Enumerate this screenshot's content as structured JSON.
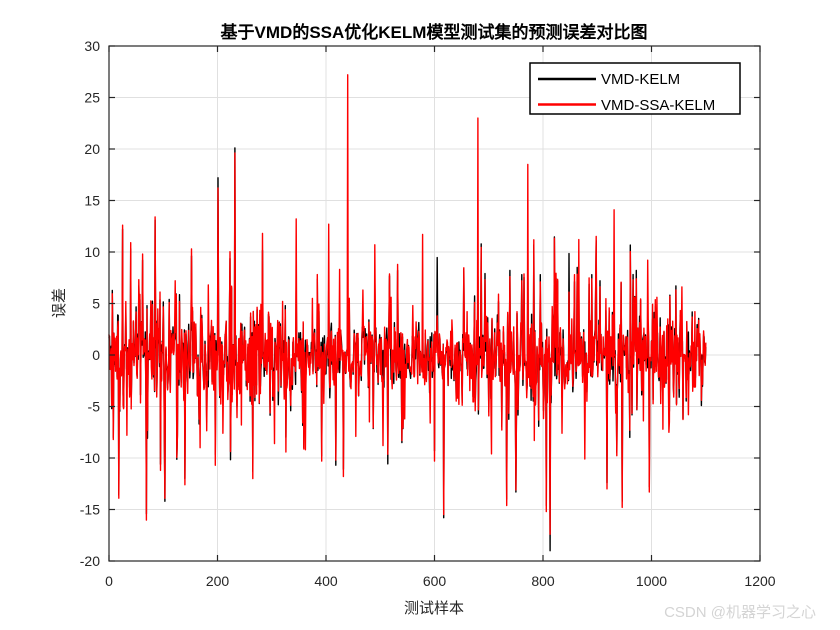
{
  "page": {
    "background": "#ffffff",
    "watermark": {
      "text": "CSDN @机器学习之心",
      "color": "#d4d4d4"
    }
  },
  "chart_data": {
    "type": "line",
    "title": "基于VMD的SSA优化KELM模型测试集的预测误差对比图",
    "xlabel": "测试样本",
    "ylabel": "误差",
    "xlim": [
      0,
      1200
    ],
    "ylim": [
      -20,
      30
    ],
    "xticks": [
      0,
      200,
      400,
      600,
      800,
      1000,
      1200
    ],
    "yticks": [
      -20,
      -15,
      -10,
      -5,
      0,
      5,
      10,
      15,
      20,
      25,
      30
    ],
    "grid": true,
    "grid_color": "#e0e0e0",
    "axis_color": "#262626",
    "legend": {
      "position": "top-right",
      "entries": [
        {
          "label": "VMD-KELM",
          "color": "#000000"
        },
        {
          "label": "VMD-SSA-KELM",
          "color": "#ff0000"
        }
      ]
    },
    "series": [
      {
        "name": "VMD-KELM",
        "color": "#000000"
      },
      {
        "name": "VMD-SSA-KELM",
        "color": "#ff0000"
      }
    ],
    "generator": {
      "seed": 20240613,
      "n": 1101,
      "base_std": 1.55,
      "red_jitter": 0.8,
      "burst_prob": 0.1,
      "burst_gain": 1.9,
      "outlier_prob": 0.022,
      "outlier_min": 6,
      "outlier_span": 5.5,
      "keypoints": [
        {
          "x": 5,
          "b": -5.2,
          "r": -5.0
        },
        {
          "x": 8,
          "b": -8.0,
          "r": -8.2
        },
        {
          "x": 18,
          "b": -13.6,
          "r": -13.9
        },
        {
          "x": 25,
          "b": 12.2,
          "r": 12.6
        },
        {
          "x": 33,
          "r": -7.8
        },
        {
          "x": 40,
          "b": 10.3,
          "r": 10.9
        },
        {
          "x": 62,
          "b": 9.2,
          "r": 9.8
        },
        {
          "x": 85,
          "b": 13.1,
          "r": 13.4
        },
        {
          "x": 95,
          "b": -10.6,
          "r": -11.2
        },
        {
          "x": 103,
          "b": -14.2,
          "r": -13.9
        },
        {
          "x": 122,
          "r": 7.2
        },
        {
          "x": 140,
          "b": -12.0,
          "r": -12.6
        },
        {
          "x": 152,
          "b": 9.6,
          "r": 10.3
        },
        {
          "x": 168,
          "r": -9.0
        },
        {
          "x": 183,
          "r": 6.8
        },
        {
          "x": 201,
          "b": 17.2,
          "r": 16.2
        },
        {
          "x": 210,
          "r": -7.6
        },
        {
          "x": 232,
          "b": 20.1,
          "r": 19.6
        },
        {
          "x": 244,
          "r": -6.8
        },
        {
          "x": 265,
          "b": -11.3,
          "r": -12.0
        },
        {
          "x": 280,
          "r": 4.9
        },
        {
          "x": 305,
          "r": -8.6
        },
        {
          "x": 320,
          "r": 5.2
        },
        {
          "x": 345,
          "b": 6.8,
          "r": 13.2
        },
        {
          "x": 362,
          "r": -9.2
        },
        {
          "x": 375,
          "r": 5.5
        },
        {
          "x": 392,
          "b": -9.8,
          "r": -10.3
        },
        {
          "x": 405,
          "b": 6.4,
          "r": 12.7
        },
        {
          "x": 418,
          "b": -10.7,
          "r": -10.2
        },
        {
          "x": 425,
          "r": 8.3
        },
        {
          "x": 432,
          "b": -11.1,
          "r": -11.8
        },
        {
          "x": 440,
          "b": 5.2,
          "r": 27.2
        },
        {
          "x": 455,
          "r": -7.9
        },
        {
          "x": 468,
          "r": 6.3
        },
        {
          "x": 480,
          "r": -6.5
        },
        {
          "x": 490,
          "b": 7.1,
          "r": 10.7
        },
        {
          "x": 505,
          "r": -8.8
        },
        {
          "x": 520,
          "r": 5.6
        },
        {
          "x": 532,
          "b": 8.2,
          "r": 8.8
        },
        {
          "x": 545,
          "r": -6.2
        },
        {
          "x": 560,
          "r": 4.8
        },
        {
          "x": 578,
          "b": 4.2,
          "r": 11.7
        },
        {
          "x": 592,
          "r": -6.6
        },
        {
          "x": 605,
          "r": 3.8
        },
        {
          "x": 617,
          "b": -15.8,
          "r": -15.5
        },
        {
          "x": 632,
          "r": 3.4
        },
        {
          "x": 645,
          "r": -4.8
        },
        {
          "x": 660,
          "r": 4.2
        },
        {
          "x": 680,
          "b": 7.6,
          "r": 23.0
        },
        {
          "x": 693,
          "b": 7.9,
          "r": 7.3
        },
        {
          "x": 705,
          "r": -9.6
        },
        {
          "x": 718,
          "r": 5.9
        },
        {
          "x": 739,
          "b": 8.2,
          "r": 7.6
        },
        {
          "x": 750,
          "b": -13.3,
          "r": -13.1
        },
        {
          "x": 761,
          "b": 7.8,
          "r": 7.2
        },
        {
          "x": 772,
          "b": 7.9,
          "r": 18.5
        },
        {
          "x": 784,
          "r": -8.3
        },
        {
          "x": 795,
          "b": 7.8,
          "r": 7.1
        },
        {
          "x": 806,
          "b": -14.6,
          "r": -15.2
        },
        {
          "x": 813,
          "b": -19.0,
          "r": -17.4
        },
        {
          "x": 822,
          "r": 5.4
        },
        {
          "x": 835,
          "r": -7.6
        },
        {
          "x": 848,
          "r": 6.1
        },
        {
          "x": 866,
          "b": 6.0,
          "r": 11.2
        },
        {
          "x": 877,
          "r": -10.1
        },
        {
          "x": 890,
          "b": 7.8,
          "r": 7.4
        },
        {
          "x": 905,
          "b": 7.2,
          "r": 6.6
        },
        {
          "x": 918,
          "b": -12.4,
          "r": -13.0
        },
        {
          "x": 931,
          "b": 6.3,
          "r": 14.1
        },
        {
          "x": 946,
          "b": -14.2,
          "r": -14.8
        },
        {
          "x": 960,
          "b": -8.0,
          "r": -7.3
        },
        {
          "x": 972,
          "b": 8.2,
          "r": 7.4
        },
        {
          "x": 985,
          "r": -6.4
        },
        {
          "x": 993,
          "r": 9.2
        },
        {
          "x": 996,
          "b": -12.8,
          "r": -13.3
        },
        {
          "x": 1010,
          "r": 5.6
        },
        {
          "x": 1021,
          "r": -7.2
        },
        {
          "x": 1032,
          "r": -7.5
        },
        {
          "x": 1045,
          "b": 6.7,
          "r": 6.3
        },
        {
          "x": 1056,
          "r": 6.6
        },
        {
          "x": 1068,
          "r": -5.8
        },
        {
          "x": 1080,
          "r": 4.2
        },
        {
          "x": 1092,
          "b": -4.9,
          "r": -4.4
        },
        {
          "x": 1100,
          "b": 0.8,
          "r": 1.2
        }
      ]
    }
  }
}
